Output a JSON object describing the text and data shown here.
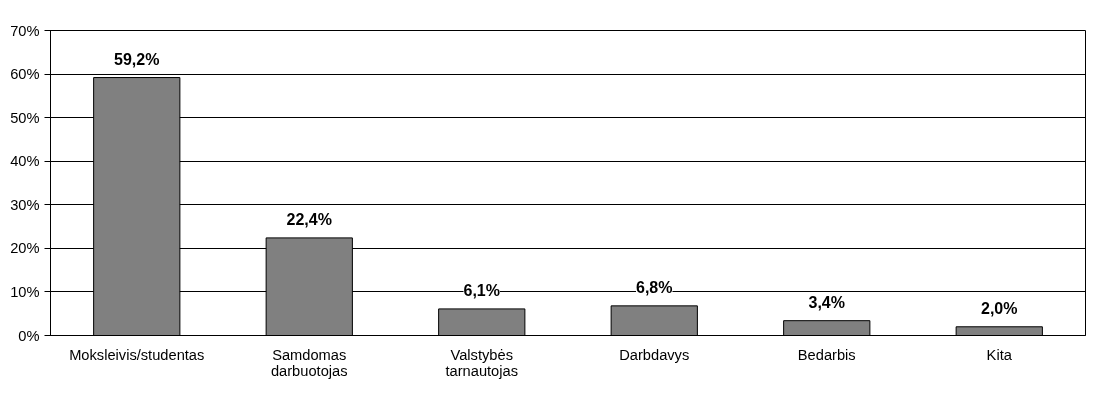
{
  "chart_data": {
    "type": "bar",
    "categories": [
      "Moksleivis/studentas",
      "Samdomas darbuotojas",
      "Valstybės tarnautojas",
      "Darbdavys",
      "Bedarbis",
      "Kita"
    ],
    "values": [
      59.2,
      22.4,
      6.1,
      6.8,
      3.4,
      2.0
    ],
    "value_labels": [
      "59,2%",
      "22,4%",
      "6,1%",
      "6,8%",
      "3,4%",
      "2,0%"
    ],
    "color": "#808080",
    "ylim": [
      0,
      70
    ],
    "yticks": [
      {
        "value": 0,
        "label": "0%"
      },
      {
        "value": 10,
        "label": "10%"
      },
      {
        "value": 20,
        "label": "20%"
      },
      {
        "value": 30,
        "label": "30%"
      },
      {
        "value": 40,
        "label": "40%"
      },
      {
        "value": 50,
        "label": "50%"
      },
      {
        "value": 60,
        "label": "60%"
      },
      {
        "value": 70,
        "label": "70%"
      }
    ],
    "grid": "y"
  }
}
